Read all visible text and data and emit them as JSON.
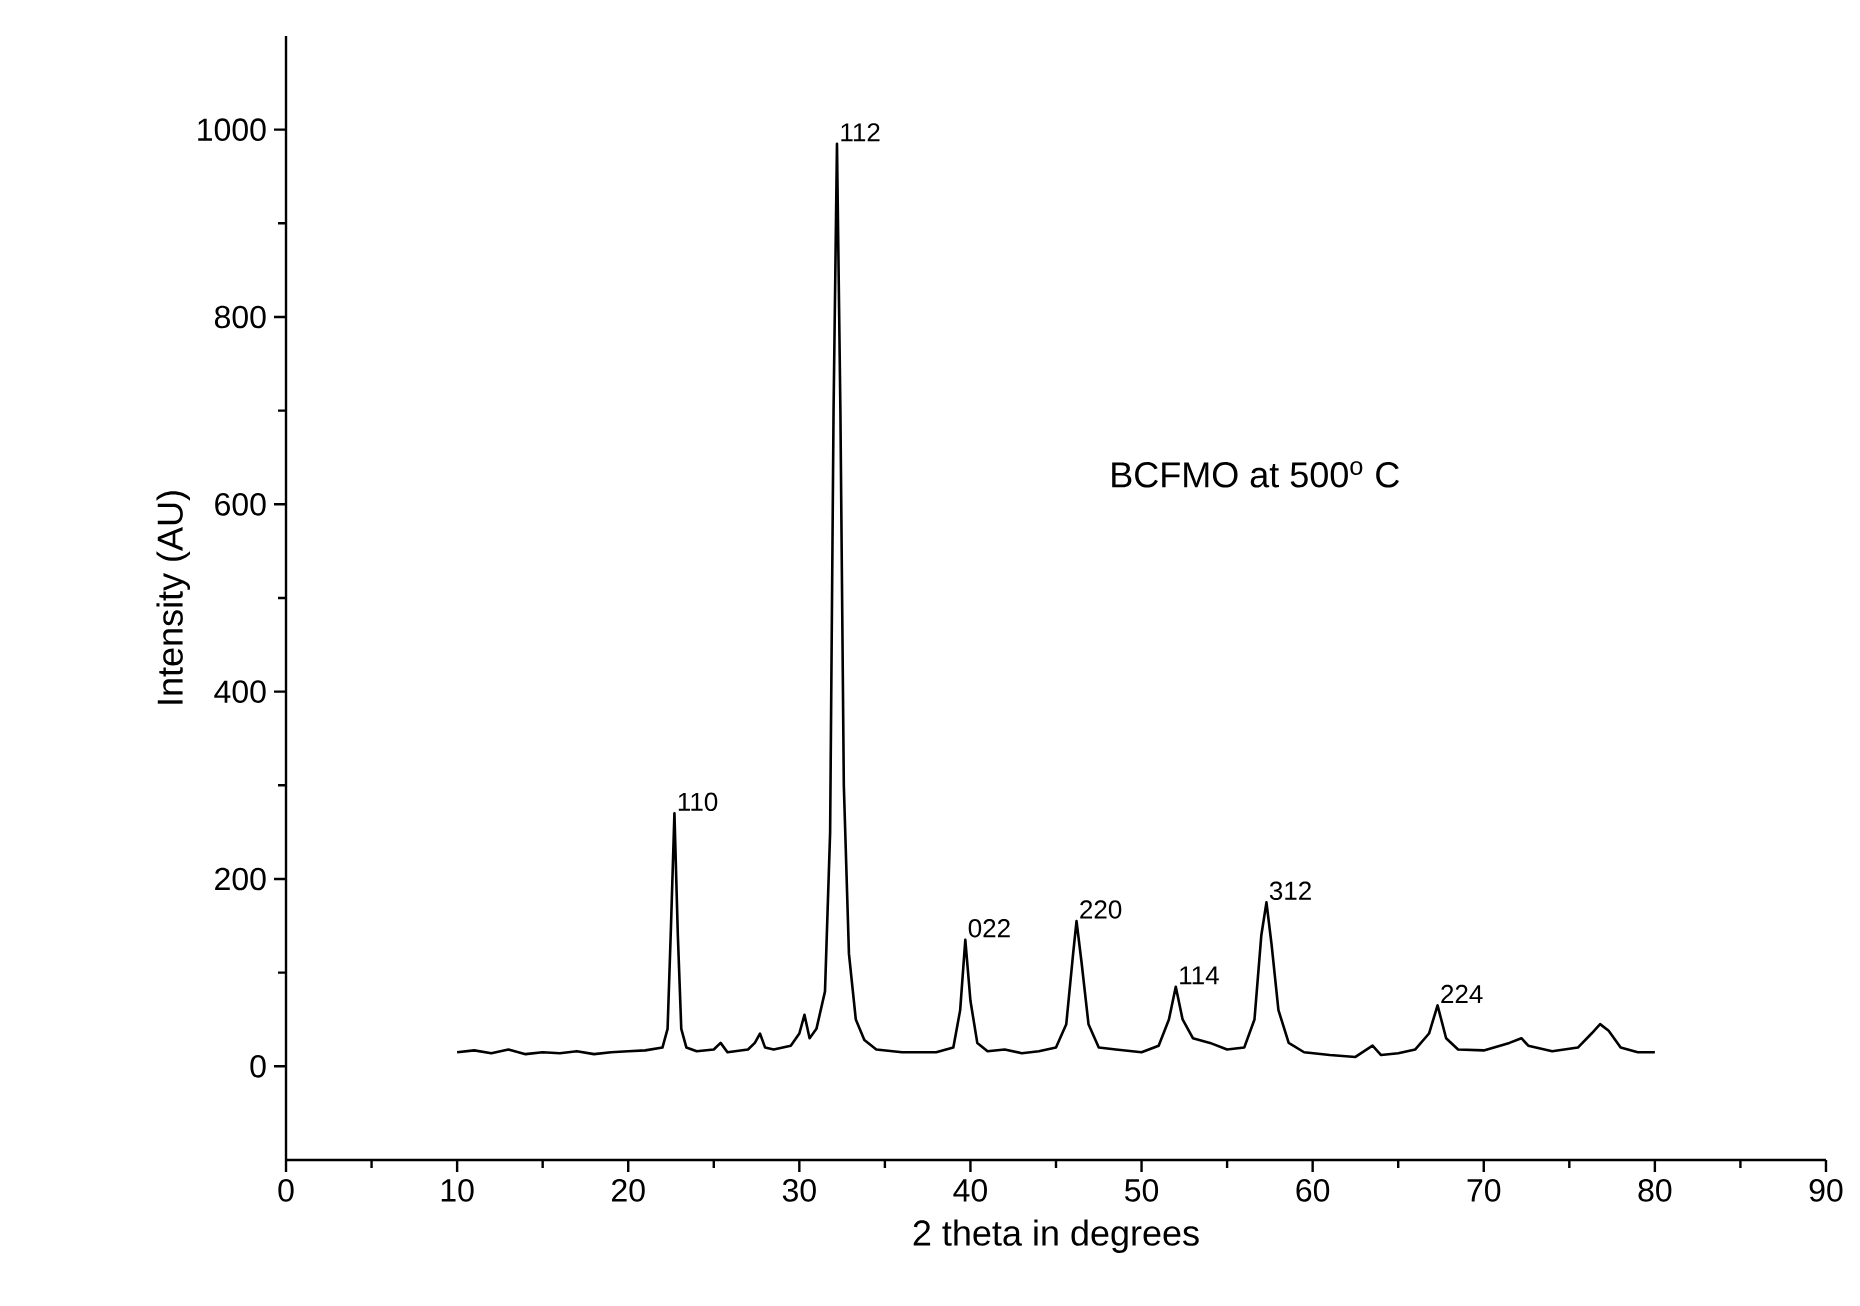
{
  "chart_data": {
    "type": "line",
    "xlabel": "2 theta in degrees",
    "ylabel": "Intensity (AU)",
    "xlim": [
      0,
      90
    ],
    "ylim": [
      -100,
      1100
    ],
    "xticks": [
      0,
      10,
      20,
      30,
      40,
      50,
      60,
      70,
      80,
      90
    ],
    "yticks": [
      0,
      200,
      400,
      600,
      800,
      1000
    ],
    "marker": "none",
    "line_style": "solid",
    "series": [
      {
        "color": "#000000",
        "x": [
          10,
          11,
          12,
          13,
          14,
          15,
          16,
          17,
          18,
          19,
          20,
          21,
          22,
          22.3,
          22.5,
          22.7,
          22.9,
          23.1,
          23.4,
          24,
          25,
          25.4,
          25.8,
          27,
          27.4,
          27.7,
          28,
          28.5,
          29.5,
          30,
          30.3,
          30.6,
          31.0,
          31.5,
          31.8,
          32.0,
          32.2,
          32.4,
          32.6,
          32.9,
          33.3,
          33.8,
          34.5,
          36,
          38,
          39,
          39.4,
          39.7,
          40.0,
          40.4,
          41,
          42,
          43,
          44,
          45,
          45.6,
          46.0,
          46.2,
          46.5,
          46.9,
          47.5,
          48.5,
          50,
          51,
          51.6,
          52.0,
          52.4,
          53,
          54,
          55,
          56,
          56.6,
          57.0,
          57.3,
          57.6,
          58.0,
          58.6,
          59.5,
          61,
          62.5,
          63.5,
          64,
          65,
          66,
          66.8,
          67.3,
          67.8,
          68.5,
          70,
          71.5,
          72.2,
          72.6,
          74,
          75.5,
          76.3,
          76.8,
          77.3,
          78,
          79,
          80
        ],
        "values": [
          15,
          17,
          14,
          18,
          13,
          15,
          14,
          16,
          13,
          15,
          16,
          17,
          20,
          40,
          150,
          270,
          140,
          40,
          20,
          16,
          18,
          25,
          15,
          18,
          25,
          35,
          20,
          18,
          22,
          35,
          55,
          30,
          40,
          80,
          250,
          700,
          985,
          700,
          300,
          120,
          50,
          28,
          18,
          15,
          15,
          20,
          60,
          135,
          70,
          25,
          16,
          18,
          14,
          16,
          20,
          45,
          120,
          155,
          110,
          45,
          20,
          18,
          15,
          22,
          50,
          85,
          50,
          30,
          25,
          18,
          20,
          50,
          140,
          175,
          130,
          60,
          25,
          15,
          12,
          10,
          22,
          12,
          14,
          18,
          35,
          65,
          30,
          18,
          17,
          25,
          30,
          22,
          16,
          20,
          35,
          45,
          38,
          20,
          15,
          15
        ]
      }
    ],
    "annotations": [
      {
        "text": "110",
        "x": 22.7,
        "y": 270
      },
      {
        "text": "112",
        "x": 32.2,
        "y": 985
      },
      {
        "text": "022",
        "x": 39.7,
        "y": 135
      },
      {
        "text": "220",
        "x": 46.2,
        "y": 155
      },
      {
        "text": "114",
        "x": 52.0,
        "y": 85
      },
      {
        "text": "312",
        "x": 57.3,
        "y": 175
      },
      {
        "text": "224",
        "x": 67.3,
        "y": 65
      },
      "BCFMO at 500$^{o}$ C"
    ]
  }
}
